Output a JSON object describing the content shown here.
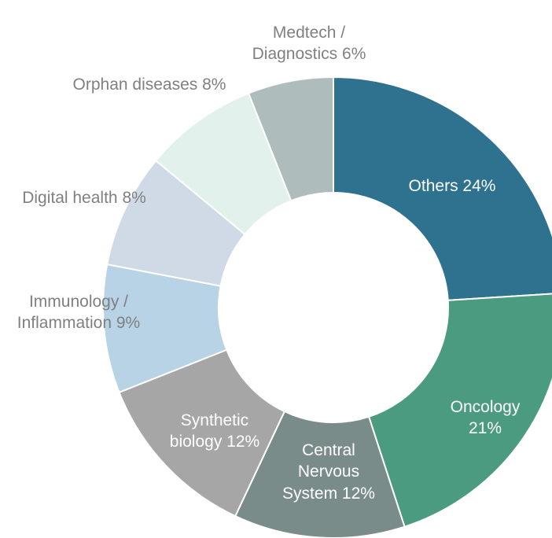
{
  "chart_data": {
    "type": "donut",
    "categories": [
      "Others",
      "Oncology",
      "Central Nervous System",
      "Synthetic biology",
      "Immunology / Inflammation",
      "Digital health",
      "Orphan diseases",
      "Medtech / Diagnostics"
    ],
    "values": [
      24,
      21,
      12,
      12,
      9,
      8,
      8,
      6
    ],
    "value_labels": [
      "24%",
      "21%",
      "12%",
      "12%",
      "9%",
      "8%",
      "8%",
      "6%"
    ],
    "colors": [
      "#2e7290",
      "#4a9b80",
      "#7a8c8a",
      "#a6a6a6",
      "#b8d3e6",
      "#cfdae6",
      "#e3f1ec",
      "#aebcbb"
    ]
  }
}
